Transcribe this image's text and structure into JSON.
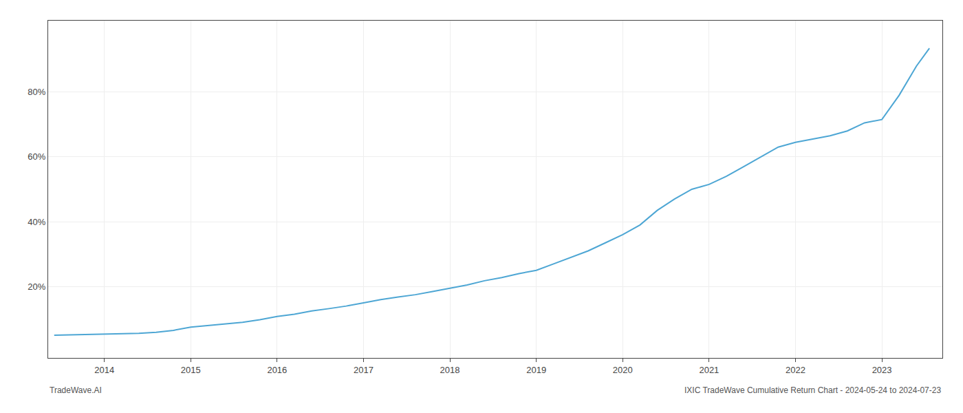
{
  "chart_data": {
    "type": "line",
    "color": "#4DA6D4",
    "x": [
      2013.42,
      2013.6,
      2013.8,
      2014.0,
      2014.2,
      2014.4,
      2014.6,
      2014.8,
      2015.0,
      2015.2,
      2015.4,
      2015.6,
      2015.8,
      2016.0,
      2016.2,
      2016.4,
      2016.6,
      2016.8,
      2017.0,
      2017.2,
      2017.4,
      2017.6,
      2017.8,
      2018.0,
      2018.2,
      2018.4,
      2018.6,
      2018.8,
      2019.0,
      2019.2,
      2019.4,
      2019.6,
      2019.8,
      2020.0,
      2020.2,
      2020.4,
      2020.6,
      2020.8,
      2021.0,
      2021.2,
      2021.4,
      2021.6,
      2021.8,
      2022.0,
      2022.2,
      2022.4,
      2022.6,
      2022.8,
      2023.0,
      2023.2,
      2023.4,
      2023.55
    ],
    "values": [
      5.0,
      5.1,
      5.2,
      5.3,
      5.4,
      5.6,
      5.9,
      6.5,
      7.5,
      8.0,
      8.5,
      9.0,
      9.8,
      10.8,
      11.5,
      12.5,
      13.2,
      14.0,
      15.0,
      16.0,
      16.8,
      17.5,
      18.5,
      19.5,
      20.5,
      21.8,
      22.8,
      24.0,
      25.0,
      27.0,
      29.0,
      31.0,
      33.5,
      36.0,
      39.0,
      43.5,
      47.0,
      50.0,
      51.5,
      54.0,
      57.0,
      60.0,
      63.0,
      64.5,
      65.5,
      66.5,
      68.0,
      70.5,
      71.5,
      79.0,
      88.0,
      93.5
    ],
    "xlim": [
      2013.35,
      2023.7
    ],
    "ylim": [
      -2,
      102
    ],
    "xticks": [
      2014,
      2015,
      2016,
      2017,
      2018,
      2019,
      2020,
      2021,
      2022,
      2023
    ],
    "yticks": [
      {
        "value": 20,
        "label": "20%"
      },
      {
        "value": 40,
        "label": "40%"
      },
      {
        "value": 60,
        "label": "60%"
      },
      {
        "value": 80,
        "label": "80%"
      }
    ],
    "grid": true,
    "annotations": [
      "TradeWave.AI",
      "IXIC TradeWave Cumulative Return Chart - 2024-05-24 to 2024-07-23"
    ]
  }
}
